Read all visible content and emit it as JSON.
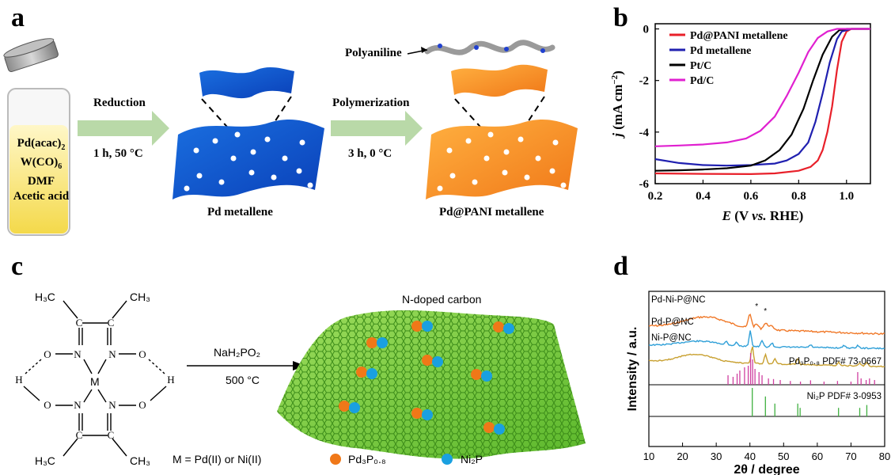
{
  "panels": {
    "a": {
      "letter": "a",
      "vial_lines": [
        "Pd(acac)",
        "W(CO)",
        "DMF",
        "Acetic acid"
      ],
      "vial_subs": [
        "2",
        "6"
      ],
      "step1_top": "Reduction",
      "step1_bottom": "1 h, 50 °C",
      "step2_top": "Polymerization",
      "step2_bottom": "3 h, 0 °C",
      "product1": "Pd metallene",
      "product2": "Pd@PANI metallene",
      "polymer_label": "Polyaniline"
    },
    "b": {
      "letter": "b"
    },
    "c": {
      "letter": "c",
      "complex_labels": {
        "h3c_tl": "H₃C",
        "ch3_tr": "CH₃",
        "h3c_bl": "H₃C",
        "ch3_br": "CH₃",
        "metal": "M"
      },
      "reagent": "NaH₂PO₂",
      "temp": "500 °C",
      "metal_def": "M = Pd(II) or Ni(II)",
      "support_label": "N-doped carbon",
      "legend": [
        "Pd₃P₀.₈",
        "Ni₂P"
      ]
    },
    "d": {
      "letter": "d"
    }
  },
  "chart_data": [
    {
      "type": "line",
      "panel": "b",
      "xlabel_parts": [
        "E",
        " (V ",
        "vs.",
        " RHE)"
      ],
      "ylabel_parts": [
        "j",
        " (mA cm",
        "−2",
        ")"
      ],
      "xlim": [
        0.2,
        1.1
      ],
      "ylim": [
        -6,
        0.2
      ],
      "xticks": [
        "0.2",
        "0.4",
        "0.6",
        "0.8",
        "1.0"
      ],
      "yticks": [
        "0",
        "-2",
        "-4",
        "-6"
      ],
      "legend_position": "top-left",
      "series": [
        {
          "name": "Pd@PANI metallene",
          "color": "#e8202a",
          "points": [
            [
              0.2,
              -5.6
            ],
            [
              0.4,
              -5.62
            ],
            [
              0.6,
              -5.63
            ],
            [
              0.7,
              -5.6
            ],
            [
              0.8,
              -5.5
            ],
            [
              0.85,
              -5.35
            ],
            [
              0.88,
              -5.1
            ],
            [
              0.9,
              -4.7
            ],
            [
              0.92,
              -4.0
            ],
            [
              0.94,
              -3.0
            ],
            [
              0.96,
              -1.6
            ],
            [
              0.98,
              -0.5
            ],
            [
              1.0,
              -0.1
            ],
            [
              1.02,
              0
            ],
            [
              1.1,
              0
            ]
          ]
        },
        {
          "name": "Pd metallene",
          "color": "#2020b0",
          "points": [
            [
              0.2,
              -5.05
            ],
            [
              0.3,
              -5.2
            ],
            [
              0.4,
              -5.28
            ],
            [
              0.5,
              -5.3
            ],
            [
              0.6,
              -5.28
            ],
            [
              0.7,
              -5.22
            ],
            [
              0.75,
              -5.1
            ],
            [
              0.8,
              -4.85
            ],
            [
              0.84,
              -4.4
            ],
            [
              0.87,
              -3.6
            ],
            [
              0.9,
              -2.5
            ],
            [
              0.93,
              -1.3
            ],
            [
              0.96,
              -0.4
            ],
            [
              0.98,
              -0.1
            ],
            [
              1.02,
              0
            ],
            [
              1.1,
              0
            ]
          ]
        },
        {
          "name": "Pt/C",
          "color": "#000000",
          "points": [
            [
              0.2,
              -5.5
            ],
            [
              0.3,
              -5.48
            ],
            [
              0.4,
              -5.45
            ],
            [
              0.5,
              -5.4
            ],
            [
              0.6,
              -5.3
            ],
            [
              0.66,
              -5.1
            ],
            [
              0.72,
              -4.7
            ],
            [
              0.77,
              -4.1
            ],
            [
              0.82,
              -3.1
            ],
            [
              0.86,
              -2.0
            ],
            [
              0.9,
              -1.0
            ],
            [
              0.94,
              -0.3
            ],
            [
              0.97,
              -0.05
            ],
            [
              1.0,
              0
            ],
            [
              1.1,
              0
            ]
          ]
        },
        {
          "name": "Pd/C",
          "color": "#e020d0",
          "points": [
            [
              0.2,
              -4.55
            ],
            [
              0.3,
              -4.52
            ],
            [
              0.4,
              -4.48
            ],
            [
              0.5,
              -4.4
            ],
            [
              0.58,
              -4.25
            ],
            [
              0.64,
              -3.95
            ],
            [
              0.7,
              -3.4
            ],
            [
              0.75,
              -2.6
            ],
            [
              0.8,
              -1.7
            ],
            [
              0.84,
              -0.9
            ],
            [
              0.88,
              -0.35
            ],
            [
              0.92,
              -0.1
            ],
            [
              0.96,
              0
            ],
            [
              1.1,
              0
            ]
          ]
        }
      ]
    },
    {
      "type": "line",
      "panel": "d",
      "xlabel": "2θ / degree",
      "ylabel": "Intensity / a.u.",
      "xlim": [
        10,
        80
      ],
      "xticks": [
        "10",
        "20",
        "30",
        "40",
        "50",
        "60",
        "70",
        "80"
      ],
      "series": [
        {
          "name": "Pd-Ni-P@NC",
          "color": "#f07828"
        },
        {
          "name": "Pd-P@NC",
          "color": "#30a0d8"
        },
        {
          "name": "Ni-P@NC",
          "color": "#c8a030"
        }
      ],
      "references": [
        {
          "name": "Pd₃P₀.₈ PDF# 73-0667",
          "color": "#d040a0",
          "peaks": [
            [
              33.5,
              0.3
            ],
            [
              35,
              0.25
            ],
            [
              36.2,
              0.35
            ],
            [
              37,
              0.45
            ],
            [
              38.4,
              0.55
            ],
            [
              39.5,
              0.6
            ],
            [
              40.2,
              1.0
            ],
            [
              40.8,
              0.8
            ],
            [
              41.5,
              0.5
            ],
            [
              42.7,
              0.4
            ],
            [
              43.6,
              0.3
            ],
            [
              45.5,
              0.2
            ],
            [
              47,
              0.18
            ],
            [
              49,
              0.15
            ],
            [
              52,
              0.12
            ],
            [
              55,
              0.1
            ],
            [
              58,
              0.14
            ],
            [
              62,
              0.1
            ],
            [
              66,
              0.12
            ],
            [
              70,
              0.1
            ],
            [
              72,
              0.4
            ],
            [
              73,
              0.2
            ],
            [
              74.5,
              0.15
            ],
            [
              75.5,
              0.2
            ],
            [
              77,
              0.15
            ]
          ]
        },
        {
          "name": "Ni₂P PDF# 3-0953",
          "color": "#40b040",
          "peaks": [
            [
              40.7,
              1.0
            ],
            [
              44.6,
              0.7
            ],
            [
              47.4,
              0.45
            ],
            [
              54.2,
              0.45
            ],
            [
              54.9,
              0.3
            ],
            [
              66.3,
              0.3
            ],
            [
              72.6,
              0.3
            ],
            [
              74.7,
              0.4
            ]
          ]
        }
      ]
    }
  ]
}
